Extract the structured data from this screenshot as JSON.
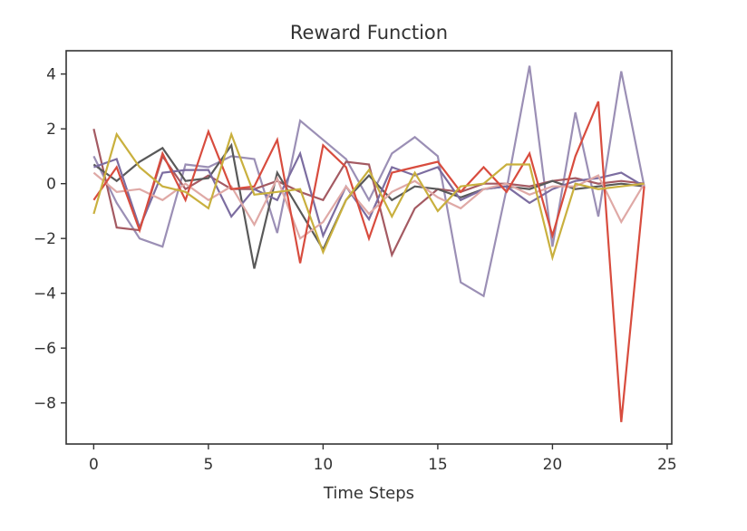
{
  "chart_data": {
    "type": "line",
    "title": "Reward Function",
    "xlabel": "Time Steps",
    "ylabel": "",
    "xlim": [
      -1.2,
      25.2
    ],
    "ylim": [
      -9.5,
      4.85
    ],
    "xticks": [
      0,
      5,
      10,
      15,
      20,
      25
    ],
    "yticks": [
      4,
      2,
      0,
      -2,
      -4,
      -6,
      -8
    ],
    "ytick_labels": [
      "4",
      "2",
      "0",
      "−2",
      "−4",
      "−6",
      "−8"
    ],
    "grid": false,
    "legend": "none",
    "x": [
      0,
      1,
      2,
      3,
      4,
      5,
      6,
      7,
      8,
      9,
      10,
      11,
      12,
      13,
      14,
      15,
      16,
      17,
      18,
      19,
      20,
      21,
      22,
      23,
      24
    ],
    "series": [
      {
        "color": "#9b8fb5",
        "values": [
          1.0,
          -0.7,
          -2.0,
          -2.3,
          0.7,
          0.6,
          1.0,
          0.9,
          -1.8,
          2.3,
          1.6,
          0.9,
          -0.6,
          1.1,
          1.7,
          1.0,
          -3.6,
          -4.1,
          -0.2,
          4.3,
          -2.3,
          2.6,
          -1.2,
          4.1,
          -0.1
        ]
      },
      {
        "color": "#a45a62",
        "values": [
          2.0,
          -1.6,
          -1.7,
          1.0,
          -0.2,
          0.3,
          -0.2,
          -0.2,
          0.1,
          -0.3,
          -0.6,
          0.8,
          0.7,
          -2.6,
          -0.9,
          -0.2,
          -0.3,
          0.0,
          0.0,
          -0.1,
          0.1,
          0.2,
          0.0,
          0.1,
          0.0
        ]
      },
      {
        "color": "#595959",
        "values": [
          0.7,
          0.1,
          0.8,
          1.3,
          0.1,
          0.2,
          1.4,
          -3.1,
          0.4,
          -1.0,
          -2.4,
          -0.6,
          0.3,
          -0.6,
          -0.1,
          -0.2,
          -0.5,
          -0.2,
          -0.1,
          -0.2,
          0.1,
          -0.2,
          -0.1,
          0.0,
          -0.1
        ]
      },
      {
        "color": "#7c6da0",
        "values": [
          0.6,
          0.9,
          -1.6,
          0.4,
          0.5,
          0.5,
          -1.2,
          -0.2,
          -0.6,
          1.1,
          -1.9,
          -0.1,
          -1.3,
          0.6,
          0.3,
          0.6,
          -0.6,
          -0.2,
          -0.1,
          -0.7,
          -0.2,
          0.1,
          0.2,
          0.4,
          -0.1
        ]
      },
      {
        "color": "#dfa9a6",
        "values": [
          0.4,
          -0.3,
          -0.2,
          -0.6,
          0.0,
          -0.6,
          -0.1,
          -1.5,
          0.2,
          -2.0,
          -1.4,
          -0.1,
          -1.1,
          -0.3,
          0.1,
          -0.5,
          -0.9,
          -0.2,
          0.0,
          -0.4,
          -0.1,
          -0.1,
          0.3,
          -1.4,
          0.0
        ]
      },
      {
        "color": "#d84c3e",
        "values": [
          -0.6,
          0.6,
          -1.7,
          1.1,
          -0.6,
          1.9,
          -0.2,
          -0.1,
          1.6,
          -2.9,
          1.4,
          0.6,
          -2.0,
          0.4,
          0.6,
          0.8,
          -0.3,
          0.6,
          -0.3,
          1.1,
          -1.9,
          1.0,
          3.0,
          -8.7,
          -0.1
        ]
      },
      {
        "color": "#c9b03e",
        "values": [
          -1.1,
          1.8,
          0.6,
          -0.1,
          -0.3,
          -0.9,
          1.8,
          -0.4,
          -0.3,
          -0.2,
          -2.5,
          -0.6,
          0.5,
          -1.2,
          0.4,
          -1.0,
          -0.1,
          0.0,
          0.7,
          0.7,
          -2.7,
          0.0,
          -0.2,
          -0.1,
          0.0
        ]
      }
    ]
  }
}
